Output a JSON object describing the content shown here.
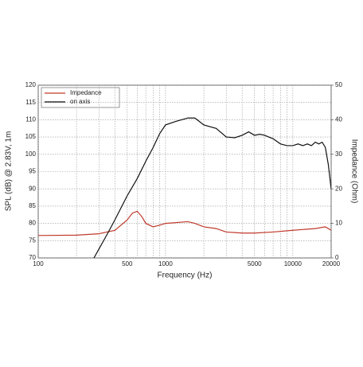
{
  "chart_data": {
    "type": "line",
    "x_scale": "log",
    "grid": true,
    "legend": "top-left",
    "xlabel": "Frequency (Hz)",
    "ylabel": "SPL (dB) @ 2.83V, 1m",
    "y2label": "Impedance (Ohm)",
    "xlim": [
      100,
      20000
    ],
    "xticks": [
      100,
      500,
      1000,
      5000,
      10000,
      20000
    ],
    "x_minor_grid": [
      200,
      300,
      400,
      600,
      700,
      800,
      900,
      2000,
      3000,
      4000,
      6000,
      7000,
      8000,
      9000
    ],
    "ylim": [
      70,
      120
    ],
    "yticks": [
      70,
      75,
      80,
      85,
      90,
      95,
      100,
      105,
      110,
      115,
      120
    ],
    "y2lim": [
      0,
      50
    ],
    "y2ticks": [
      0,
      10,
      20,
      30,
      40,
      50
    ],
    "series": [
      {
        "name": "Impedance",
        "color": "#c0392b",
        "axis": "y2",
        "x": [
          100,
          200,
          300,
          400,
          500,
          550,
          600,
          650,
          700,
          800,
          900,
          1000,
          1500,
          1700,
          2000,
          2500,
          3000,
          4000,
          5000,
          7000,
          10000,
          15000,
          18000,
          20000
        ],
        "values": [
          6.5,
          6.6,
          7,
          8,
          11,
          13,
          13.5,
          12,
          10,
          9,
          9.5,
          10,
          10.5,
          10,
          9,
          8.5,
          7.5,
          7.2,
          7.2,
          7.5,
          8,
          8.5,
          9,
          8
        ]
      },
      {
        "name": "on axis",
        "color": "#111111",
        "x": [
          274,
          350,
          400,
          500,
          600,
          700,
          800,
          900,
          1000,
          1200,
          1500,
          1700,
          2000,
          2500,
          3000,
          3500,
          4000,
          4500,
          5000,
          5500,
          6000,
          7000,
          8000,
          9000,
          10000,
          11000,
          12000,
          13000,
          14000,
          15000,
          16000,
          17000,
          18000,
          19000,
          20000
        ],
        "values": [
          70,
          77,
          81,
          88,
          93,
          98,
          102,
          106,
          108.5,
          109.5,
          110.5,
          110.5,
          108.5,
          107.5,
          105,
          104.8,
          105.5,
          106.5,
          105.5,
          105.8,
          105.5,
          104.5,
          103,
          102.5,
          102.5,
          103,
          102.5,
          103,
          102.5,
          103.5,
          103,
          103.5,
          102,
          97,
          90
        ]
      }
    ]
  }
}
